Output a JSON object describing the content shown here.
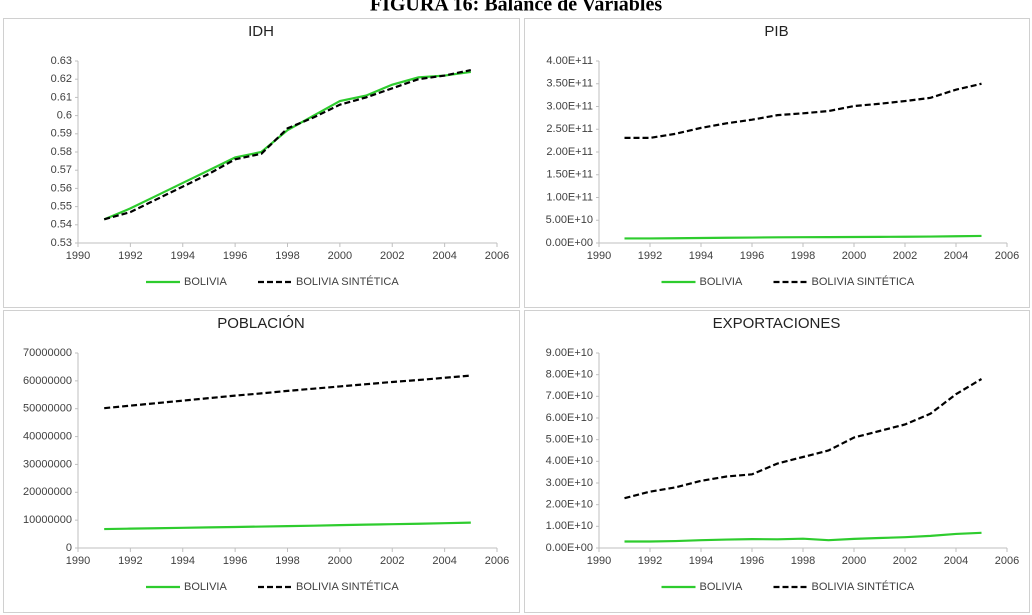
{
  "figure_title": "FIGURA 16: Balance de Variables",
  "chart_data": [
    {
      "type": "line",
      "title": "IDH",
      "x": [
        1991,
        1992,
        1993,
        1994,
        1995,
        1996,
        1997,
        1998,
        1999,
        2000,
        2001,
        2002,
        2003,
        2004,
        2005
      ],
      "xlim": [
        1990,
        2006
      ],
      "xticks": [
        1990,
        1992,
        1994,
        1996,
        1998,
        2000,
        2002,
        2004,
        2006
      ],
      "ylim": [
        0.53,
        0.63
      ],
      "yticks": [
        0.53,
        0.54,
        0.55,
        0.56,
        0.57,
        0.58,
        0.59,
        0.6,
        0.61,
        0.62,
        0.63
      ],
      "legend": "bottom",
      "series": [
        {
          "name": "BOLIVIA",
          "color": "#2ecc2e",
          "style": "solid",
          "values": [
            0.543,
            0.549,
            0.556,
            0.563,
            0.57,
            0.577,
            0.58,
            0.592,
            0.6,
            0.608,
            0.611,
            0.617,
            0.621,
            0.622,
            0.624
          ]
        },
        {
          "name": "BOLIVIA SINTÉTICA",
          "color": "#000000",
          "style": "dashed",
          "values": [
            0.543,
            0.547,
            0.554,
            0.561,
            0.568,
            0.576,
            0.579,
            0.593,
            0.599,
            0.606,
            0.61,
            0.615,
            0.62,
            0.622,
            0.625
          ]
        }
      ]
    },
    {
      "type": "line",
      "title": "PIB",
      "x": [
        1991,
        1992,
        1993,
        1994,
        1995,
        1996,
        1997,
        1998,
        1999,
        2000,
        2001,
        2002,
        2003,
        2004,
        2005
      ],
      "xlim": [
        1990,
        2006
      ],
      "xticks": [
        1990,
        1992,
        1994,
        1996,
        1998,
        2000,
        2002,
        2004,
        2006
      ],
      "ylim": [
        0,
        400000000000
      ],
      "yticks": [
        {
          "value": 0,
          "label": "0.00E+00"
        },
        {
          "value": 50000000000,
          "label": "5.00E+10"
        },
        {
          "value": 100000000000,
          "label": "1.00E+11"
        },
        {
          "value": 150000000000,
          "label": "1.50E+11"
        },
        {
          "value": 200000000000,
          "label": "2.00E+11"
        },
        {
          "value": 250000000000,
          "label": "2.50E+11"
        },
        {
          "value": 300000000000,
          "label": "3.00E+11"
        },
        {
          "value": 350000000000,
          "label": "3.50E+11"
        },
        {
          "value": 400000000000,
          "label": "4.00E+11"
        }
      ],
      "legend": "bottom",
      "series": [
        {
          "name": "BOLIVIA",
          "color": "#2ecc2e",
          "style": "solid",
          "values": [
            10000000000,
            10000000000,
            10500000000,
            11000000000,
            11500000000,
            12000000000,
            12500000000,
            12800000000,
            13000000000,
            13200000000,
            13500000000,
            13800000000,
            14200000000,
            14800000000,
            15500000000
          ]
        },
        {
          "name": "BOLIVIA SINTÉTICA",
          "color": "#000000",
          "style": "dashed",
          "values": [
            231000000000,
            231000000000,
            240000000000,
            253000000000,
            263000000000,
            271000000000,
            281000000000,
            285000000000,
            290000000000,
            301000000000,
            306000000000,
            312000000000,
            319000000000,
            337000000000,
            350000000000
          ]
        }
      ]
    },
    {
      "type": "line",
      "title": "POBLACIÓN",
      "x": [
        1991,
        1992,
        1993,
        1994,
        1995,
        1996,
        1997,
        1998,
        1999,
        2000,
        2001,
        2002,
        2003,
        2004,
        2005
      ],
      "xlim": [
        1990,
        2006
      ],
      "xticks": [
        1990,
        1992,
        1994,
        1996,
        1998,
        2000,
        2002,
        2004,
        2006
      ],
      "ylim": [
        0,
        70000000
      ],
      "yticks": [
        0,
        10000000,
        20000000,
        30000000,
        40000000,
        50000000,
        60000000,
        70000000
      ],
      "legend": "bottom",
      "series": [
        {
          "name": "BOLIVIA",
          "color": "#2ecc2e",
          "style": "solid",
          "values": [
            6800000,
            6950000,
            7100000,
            7250000,
            7400000,
            7550000,
            7700000,
            7850000,
            8000000,
            8200000,
            8400000,
            8550000,
            8700000,
            8900000,
            9100000
          ]
        },
        {
          "name": "BOLIVIA SINTÉTICA",
          "color": "#000000",
          "style": "dashed",
          "values": [
            50200000,
            51100000,
            52000000,
            52900000,
            53800000,
            54700000,
            55500000,
            56400000,
            57200000,
            58000000,
            58800000,
            59600000,
            60300000,
            61100000,
            61900000
          ]
        }
      ]
    },
    {
      "type": "line",
      "title": "EXPORTACIONES",
      "x": [
        1991,
        1992,
        1993,
        1994,
        1995,
        1996,
        1997,
        1998,
        1999,
        2000,
        2001,
        2002,
        2003,
        2004,
        2005
      ],
      "xlim": [
        1990,
        2006
      ],
      "xticks": [
        1990,
        1992,
        1994,
        1996,
        1998,
        2000,
        2002,
        2004,
        2006
      ],
      "ylim": [
        0,
        90000000000
      ],
      "yticks": [
        {
          "value": 0,
          "label": "0.00E+00"
        },
        {
          "value": 10000000000,
          "label": "1.00E+10"
        },
        {
          "value": 20000000000,
          "label": "2.00E+10"
        },
        {
          "value": 30000000000,
          "label": "3.00E+10"
        },
        {
          "value": 40000000000,
          "label": "4.00E+10"
        },
        {
          "value": 50000000000,
          "label": "5.00E+10"
        },
        {
          "value": 60000000000,
          "label": "6.00E+10"
        },
        {
          "value": 70000000000,
          "label": "7.00E+10"
        },
        {
          "value": 80000000000,
          "label": "8.00E+10"
        },
        {
          "value": 90000000000,
          "label": "9.00E+10"
        }
      ],
      "legend": "bottom",
      "series": [
        {
          "name": "BOLIVIA",
          "color": "#2ecc2e",
          "style": "solid",
          "values": [
            3000000000,
            3000000000,
            3200000000,
            3600000000,
            3900000000,
            4100000000,
            4000000000,
            4300000000,
            3600000000,
            4200000000,
            4600000000,
            5000000000,
            5600000000,
            6500000000,
            7000000000
          ]
        },
        {
          "name": "BOLIVIA SINTÉTICA",
          "color": "#000000",
          "style": "dashed",
          "values": [
            23000000000,
            26000000000,
            28000000000,
            31000000000,
            33000000000,
            34000000000,
            39000000000,
            42000000000,
            45000000000,
            51000000000,
            54000000000,
            57000000000,
            62000000000,
            71000000000,
            78000000000
          ]
        }
      ]
    }
  ]
}
